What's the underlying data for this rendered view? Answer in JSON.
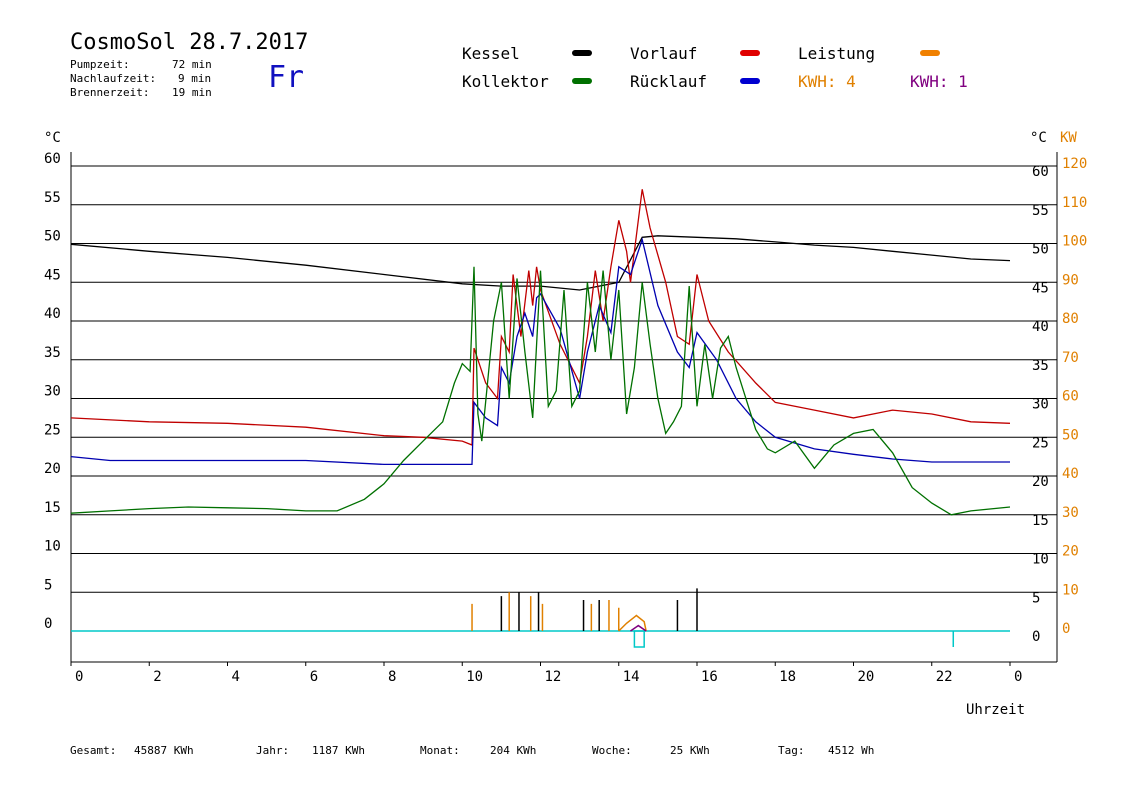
{
  "header": {
    "title": "CosmoSol 28.7.2017",
    "weekday": "Fr",
    "stats": [
      {
        "label": "Pumpzeit:",
        "value": "72 min"
      },
      {
        "label": "Nachlaufzeit:",
        "value": "9 min"
      },
      {
        "label": "Brennerzeit:",
        "value": "19 min"
      }
    ]
  },
  "legend": {
    "kessel": "Kessel",
    "kollektor": "Kollektor",
    "vorlauf": "Vorlauf",
    "ruecklauf": "Rücklauf",
    "leistung": "Leistung",
    "kwh_orange": "KWH: 4",
    "kwh_purple": "KWH: 1"
  },
  "footer": {
    "gesamt_label": "Gesamt:",
    "gesamt_value": "45887 KWh",
    "jahr_label": "Jahr:",
    "jahr_value": "1187 KWh",
    "monat_label": "Monat:",
    "monat_value": "204 KWh",
    "woche_label": "Woche:",
    "woche_value": "25 KWh",
    "tag_label": "Tag:",
    "tag_value": "4512 Wh"
  },
  "colors": {
    "kessel": "#000000",
    "kollektor": "#007000",
    "vorlauf": "#c00000",
    "ruecklauf": "#0000b0",
    "leistung": "#e08000",
    "kwh_purple": "#800080",
    "cyan": "#00c8c8"
  },
  "chart_data": {
    "type": "line",
    "xlabel": "Uhrzeit",
    "y_left_unit": "°C",
    "y_right_unit": "°C",
    "y_right2_unit": "KW",
    "xlim": [
      0,
      24
    ],
    "ylim": [
      -4,
      62
    ],
    "x_ticks": [
      "0",
      "2",
      "4",
      "6",
      "8",
      "10",
      "12",
      "14",
      "16",
      "18",
      "20",
      "22",
      "0"
    ],
    "y_ticks": [
      0,
      5,
      10,
      15,
      20,
      25,
      30,
      35,
      40,
      45,
      50,
      55,
      60
    ],
    "kw_ticks": [
      0,
      10,
      20,
      30,
      40,
      50,
      60,
      70,
      80,
      90,
      100,
      110,
      120
    ],
    "series": [
      {
        "name": "Kessel",
        "color": "#000000",
        "points": [
          [
            0,
            49.9
          ],
          [
            2,
            49.0
          ],
          [
            4,
            48.2
          ],
          [
            6,
            47.2
          ],
          [
            8,
            46.0
          ],
          [
            10,
            44.8
          ],
          [
            11,
            44.5
          ],
          [
            12,
            44.5
          ],
          [
            13,
            44.0
          ],
          [
            13.5,
            44.5
          ],
          [
            14,
            45.0
          ],
          [
            14.6,
            50.8
          ],
          [
            15,
            51.0
          ],
          [
            16,
            50.8
          ],
          [
            17,
            50.6
          ],
          [
            18,
            50.2
          ],
          [
            19,
            49.8
          ],
          [
            20,
            49.5
          ],
          [
            21,
            49.0
          ],
          [
            22,
            48.5
          ],
          [
            23,
            48.0
          ],
          [
            24,
            47.8
          ]
        ]
      },
      {
        "name": "Vorlauf",
        "color": "#c00000",
        "points": [
          [
            0,
            27.5
          ],
          [
            2,
            27.0
          ],
          [
            4,
            26.8
          ],
          [
            6,
            26.3
          ],
          [
            8,
            25.2
          ],
          [
            9,
            25.0
          ],
          [
            10,
            24.5
          ],
          [
            10.25,
            24.0
          ],
          [
            10.3,
            36.5
          ],
          [
            10.6,
            32.0
          ],
          [
            10.9,
            30.0
          ],
          [
            11.0,
            38.0
          ],
          [
            11.2,
            36.0
          ],
          [
            11.3,
            46.0
          ],
          [
            11.5,
            38.0
          ],
          [
            11.7,
            46.5
          ],
          [
            11.8,
            42.0
          ],
          [
            11.9,
            47.0
          ],
          [
            12.0,
            44.0
          ],
          [
            12.5,
            37.0
          ],
          [
            13.0,
            32.0
          ],
          [
            13.2,
            38.0
          ],
          [
            13.4,
            46.5
          ],
          [
            13.6,
            40.0
          ],
          [
            13.8,
            47.0
          ],
          [
            14.0,
            53.0
          ],
          [
            14.2,
            49.0
          ],
          [
            14.3,
            45.0
          ],
          [
            14.6,
            57.0
          ],
          [
            14.8,
            52.0
          ],
          [
            15.2,
            45.0
          ],
          [
            15.5,
            38.0
          ],
          [
            15.8,
            37.0
          ],
          [
            16.0,
            46.0
          ],
          [
            16.3,
            40.0
          ],
          [
            16.8,
            36.0
          ],
          [
            17.5,
            32.0
          ],
          [
            18.0,
            29.5
          ],
          [
            19.0,
            28.5
          ],
          [
            20.0,
            27.5
          ],
          [
            21.0,
            28.5
          ],
          [
            22.0,
            28.0
          ],
          [
            23.0,
            27.0
          ],
          [
            24,
            26.8
          ]
        ]
      },
      {
        "name": "Rücklauf",
        "color": "#0000b0",
        "points": [
          [
            0,
            22.5
          ],
          [
            1,
            22.0
          ],
          [
            3,
            22.0
          ],
          [
            6,
            22.0
          ],
          [
            8,
            21.5
          ],
          [
            10,
            21.5
          ],
          [
            10.25,
            21.5
          ],
          [
            10.3,
            29.5
          ],
          [
            10.6,
            27.5
          ],
          [
            10.9,
            26.5
          ],
          [
            11.0,
            34.0
          ],
          [
            11.2,
            32.0
          ],
          [
            11.4,
            38.0
          ],
          [
            11.6,
            41.0
          ],
          [
            11.8,
            38.0
          ],
          [
            11.9,
            43.0
          ],
          [
            12.0,
            43.5
          ],
          [
            12.5,
            39.0
          ],
          [
            13.0,
            30.0
          ],
          [
            13.2,
            36.0
          ],
          [
            13.5,
            42.0
          ],
          [
            13.8,
            38.5
          ],
          [
            14.0,
            47.0
          ],
          [
            14.3,
            46.0
          ],
          [
            14.6,
            50.5
          ],
          [
            15.0,
            42.0
          ],
          [
            15.5,
            36.0
          ],
          [
            15.8,
            34.0
          ],
          [
            16.0,
            38.5
          ],
          [
            16.5,
            35.0
          ],
          [
            17.0,
            30.0
          ],
          [
            17.5,
            27.0
          ],
          [
            18.0,
            25.0
          ],
          [
            19.0,
            23.5
          ],
          [
            20.0,
            22.8
          ],
          [
            21.0,
            22.2
          ],
          [
            22.0,
            21.8
          ],
          [
            24,
            21.8
          ]
        ]
      },
      {
        "name": "Kollektor",
        "color": "#007000",
        "points": [
          [
            0,
            15.2
          ],
          [
            1,
            15.5
          ],
          [
            2,
            15.8
          ],
          [
            3,
            16.0
          ],
          [
            4,
            15.9
          ],
          [
            5,
            15.8
          ],
          [
            6,
            15.5
          ],
          [
            6.8,
            15.5
          ],
          [
            7.5,
            17.0
          ],
          [
            8.0,
            19.0
          ],
          [
            8.5,
            22.0
          ],
          [
            9.0,
            24.5
          ],
          [
            9.5,
            27.0
          ],
          [
            9.8,
            32.0
          ],
          [
            10.0,
            34.5
          ],
          [
            10.2,
            33.5
          ],
          [
            10.3,
            47.0
          ],
          [
            10.4,
            28.0
          ],
          [
            10.5,
            24.5
          ],
          [
            10.8,
            40.0
          ],
          [
            11.0,
            45.0
          ],
          [
            11.2,
            30.0
          ],
          [
            11.4,
            45.5
          ],
          [
            11.6,
            36.0
          ],
          [
            11.8,
            27.5
          ],
          [
            12.0,
            46.5
          ],
          [
            12.2,
            29.0
          ],
          [
            12.4,
            31.0
          ],
          [
            12.6,
            44.0
          ],
          [
            12.8,
            29.0
          ],
          [
            13.0,
            31.0
          ],
          [
            13.2,
            45.0
          ],
          [
            13.4,
            36.0
          ],
          [
            13.6,
            46.5
          ],
          [
            13.8,
            35.0
          ],
          [
            14.0,
            44.0
          ],
          [
            14.2,
            28.0
          ],
          [
            14.4,
            34.0
          ],
          [
            14.6,
            45.0
          ],
          [
            14.8,
            37.0
          ],
          [
            15.0,
            30.0
          ],
          [
            15.2,
            25.5
          ],
          [
            15.4,
            27.0
          ],
          [
            15.6,
            29.0
          ],
          [
            15.8,
            44.5
          ],
          [
            16.0,
            29.0
          ],
          [
            16.2,
            37.0
          ],
          [
            16.4,
            30.0
          ],
          [
            16.6,
            36.5
          ],
          [
            16.8,
            38.0
          ],
          [
            17.0,
            34.0
          ],
          [
            17.5,
            26.0
          ],
          [
            17.8,
            23.5
          ],
          [
            18.0,
            23.0
          ],
          [
            18.5,
            24.5
          ],
          [
            19.0,
            21.0
          ],
          [
            19.5,
            24.0
          ],
          [
            20.0,
            25.5
          ],
          [
            20.5,
            26.0
          ],
          [
            21.0,
            23.0
          ],
          [
            21.5,
            18.5
          ],
          [
            22.0,
            16.5
          ],
          [
            22.5,
            15.0
          ],
          [
            23.0,
            15.5
          ],
          [
            24,
            16.0
          ]
        ]
      }
    ]
  }
}
